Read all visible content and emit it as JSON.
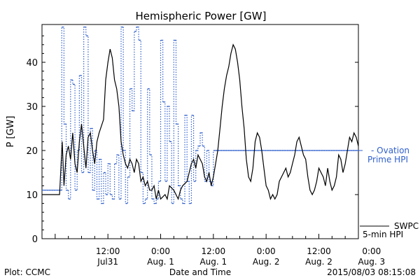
{
  "chart_data": {
    "type": "line",
    "title": "Hemispheric Power [GW]",
    "xlabel": "Date and Time",
    "ylabel": "P [GW]",
    "ylim": [
      0,
      48
    ],
    "yticks": [
      0,
      10,
      20,
      30,
      40
    ],
    "xlim": [
      -3,
      69
    ],
    "x_unit": "hours since 2015-07-31 00:00",
    "xticks": [
      {
        "x": 12,
        "line1": "12:00",
        "line2": "Jul31"
      },
      {
        "x": 24,
        "line1": "0:00",
        "line2": "Aug. 1"
      },
      {
        "x": 36,
        "line1": "12:00",
        "line2": "Aug. 1"
      },
      {
        "x": 48,
        "line1": "0:00",
        "line2": "Aug. 2"
      },
      {
        "x": 60,
        "line1": "12:00",
        "line2": "Aug. 2"
      },
      {
        "x": 72,
        "line1": "0:00",
        "line2": "Aug. 3"
      }
    ],
    "footer_left": "Plot: CCMC",
    "footer_right": "2015/08/03 08:15:08",
    "series": [
      {
        "name": "SWPC 5-min HPI",
        "label_lines": [
          "SWPC",
          "5-min HPI"
        ],
        "color": "#000000",
        "style": "solid",
        "points": [
          [
            -3,
            10
          ],
          [
            1,
            10
          ],
          [
            1.6,
            22
          ],
          [
            2,
            12
          ],
          [
            2.5,
            19
          ],
          [
            3,
            21
          ],
          [
            3.5,
            18
          ],
          [
            4,
            24
          ],
          [
            4.5,
            17
          ],
          [
            5,
            15
          ],
          [
            5.5,
            22
          ],
          [
            6,
            26
          ],
          [
            6.5,
            21
          ],
          [
            7,
            16
          ],
          [
            7.5,
            23
          ],
          [
            8,
            24
          ],
          [
            8.5,
            20
          ],
          [
            9,
            17
          ],
          [
            9.5,
            22
          ],
          [
            10,
            24
          ],
          [
            11,
            27
          ],
          [
            11.5,
            36
          ],
          [
            12,
            40
          ],
          [
            12.5,
            43
          ],
          [
            13,
            41
          ],
          [
            13.5,
            36
          ],
          [
            14,
            34
          ],
          [
            14.5,
            30
          ],
          [
            15,
            22
          ],
          [
            15.5,
            19
          ],
          [
            16,
            17
          ],
          [
            16.5,
            16
          ],
          [
            17,
            18
          ],
          [
            17.5,
            17
          ],
          [
            18,
            15
          ],
          [
            18.5,
            18
          ],
          [
            19,
            17
          ],
          [
            19.5,
            13
          ],
          [
            20,
            14
          ],
          [
            20.5,
            12
          ],
          [
            21,
            13
          ],
          [
            21.5,
            11
          ],
          [
            22,
            11
          ],
          [
            22.5,
            12
          ],
          [
            23,
            9
          ],
          [
            23.5,
            11
          ],
          [
            24,
            9
          ],
          [
            25,
            10
          ],
          [
            25.5,
            9
          ],
          [
            26,
            12
          ],
          [
            27,
            11
          ],
          [
            28,
            9
          ],
          [
            28.5,
            11
          ],
          [
            29,
            12
          ],
          [
            30,
            13
          ],
          [
            30.5,
            15
          ],
          [
            31,
            17
          ],
          [
            31.5,
            18
          ],
          [
            32,
            16
          ],
          [
            32.5,
            19
          ],
          [
            33,
            18
          ],
          [
            33.5,
            17
          ],
          [
            34,
            14
          ],
          [
            34.5,
            13
          ],
          [
            35,
            15
          ],
          [
            35.5,
            12
          ],
          [
            36,
            14
          ],
          [
            36.5,
            17
          ],
          [
            37,
            20
          ],
          [
            37.5,
            25
          ],
          [
            38,
            30
          ],
          [
            38.5,
            34
          ],
          [
            39,
            37
          ],
          [
            39.5,
            39
          ],
          [
            40,
            42
          ],
          [
            40.5,
            44
          ],
          [
            41,
            43
          ],
          [
            41.5,
            40
          ],
          [
            42,
            36
          ],
          [
            42.5,
            30
          ],
          [
            43,
            25
          ],
          [
            43.5,
            18
          ],
          [
            44,
            14
          ],
          [
            44.5,
            13
          ],
          [
            45,
            16
          ],
          [
            45.5,
            22
          ],
          [
            46,
            24
          ],
          [
            46.5,
            23
          ],
          [
            47,
            20
          ],
          [
            47.5,
            16
          ],
          [
            48,
            12
          ],
          [
            48.5,
            11
          ],
          [
            49,
            9
          ],
          [
            49.5,
            10
          ],
          [
            50,
            9
          ],
          [
            50.5,
            10
          ],
          [
            51,
            13
          ],
          [
            52,
            15
          ],
          [
            52.5,
            16
          ],
          [
            53,
            14
          ],
          [
            53.5,
            15
          ],
          [
            54,
            17
          ],
          [
            54.5,
            19
          ],
          [
            55,
            22
          ],
          [
            55.5,
            23
          ],
          [
            56,
            21
          ],
          [
            56.5,
            19
          ],
          [
            57,
            18
          ],
          [
            57.5,
            14
          ],
          [
            58,
            11
          ],
          [
            58.5,
            10
          ],
          [
            59,
            11
          ],
          [
            59.5,
            13
          ],
          [
            60,
            16
          ],
          [
            60.5,
            15
          ],
          [
            61,
            14
          ],
          [
            61.5,
            12
          ],
          [
            62,
            16
          ],
          [
            62.5,
            13
          ],
          [
            63,
            11
          ],
          [
            63.5,
            12
          ],
          [
            64,
            14
          ],
          [
            64.5,
            19
          ],
          [
            65,
            18
          ],
          [
            65.5,
            15
          ],
          [
            66,
            17
          ],
          [
            66.5,
            20
          ],
          [
            67,
            23
          ],
          [
            67.5,
            22
          ],
          [
            68,
            24
          ],
          [
            68.5,
            23
          ],
          [
            69,
            21
          ]
        ]
      },
      {
        "name": "Ovation Prime HPI",
        "label_lines": [
          "- Ovation",
          "Prime HPI"
        ],
        "color": "#3060cc",
        "style": "dotted-step",
        "points": [
          [
            -3,
            11
          ],
          [
            1,
            11
          ],
          [
            1.5,
            48
          ],
          [
            2,
            26
          ],
          [
            2.5,
            11
          ],
          [
            3,
            9
          ],
          [
            3.5,
            36
          ],
          [
            4,
            35
          ],
          [
            4.5,
            11
          ],
          [
            5,
            20
          ],
          [
            5.5,
            37
          ],
          [
            6,
            15
          ],
          [
            6.5,
            48
          ],
          [
            7,
            46
          ],
          [
            7.5,
            15
          ],
          [
            8,
            25
          ],
          [
            8.5,
            11
          ],
          [
            9,
            20
          ],
          [
            9.5,
            9
          ],
          [
            10,
            18
          ],
          [
            10.5,
            8
          ],
          [
            11,
            15
          ],
          [
            11.5,
            10
          ],
          [
            12,
            17
          ],
          [
            12.5,
            10
          ],
          [
            13,
            9
          ],
          [
            13.5,
            17
          ],
          [
            14,
            19
          ],
          [
            14.5,
            9
          ],
          [
            15,
            48
          ],
          [
            15.5,
            20
          ],
          [
            16,
            8
          ],
          [
            16.5,
            14
          ],
          [
            17,
            34
          ],
          [
            17.5,
            29
          ],
          [
            18,
            47
          ],
          [
            18.5,
            48
          ],
          [
            19,
            45
          ],
          [
            19.5,
            15
          ],
          [
            20,
            8
          ],
          [
            20.5,
            9
          ],
          [
            21,
            34
          ],
          [
            21.5,
            19
          ],
          [
            22,
            9
          ],
          [
            22.5,
            8
          ],
          [
            23,
            9
          ],
          [
            23.5,
            13
          ],
          [
            24,
            45
          ],
          [
            24.5,
            31
          ],
          [
            25,
            13
          ],
          [
            25.5,
            30
          ],
          [
            26,
            22
          ],
          [
            26.5,
            8
          ],
          [
            27,
            45
          ],
          [
            27.5,
            26
          ],
          [
            28,
            12
          ],
          [
            28.5,
            9
          ],
          [
            29,
            8
          ],
          [
            29.5,
            28
          ],
          [
            30,
            13
          ],
          [
            30.5,
            8
          ],
          [
            31,
            28
          ],
          [
            31.5,
            13
          ],
          [
            32,
            20
          ],
          [
            32.5,
            21
          ],
          [
            33,
            24
          ],
          [
            33.5,
            21
          ],
          [
            34,
            13
          ],
          [
            34.5,
            20
          ],
          [
            35,
            13
          ],
          [
            35.5,
            12
          ],
          [
            36,
            20
          ]
        ]
      }
    ]
  }
}
